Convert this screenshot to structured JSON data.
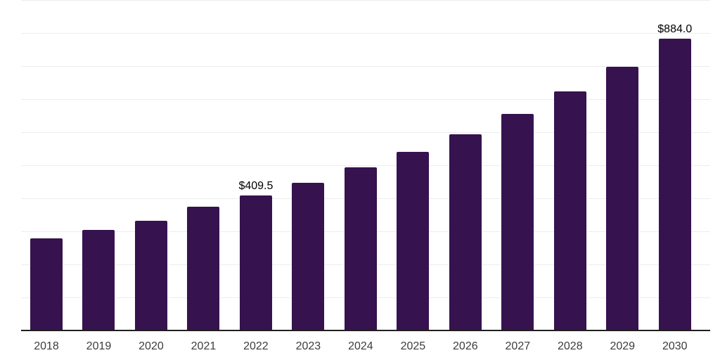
{
  "chart_data": {
    "type": "bar",
    "title": "",
    "xlabel": "",
    "ylabel": "",
    "categories": [
      "2018",
      "2019",
      "2020",
      "2021",
      "2022",
      "2023",
      "2024",
      "2025",
      "2026",
      "2027",
      "2028",
      "2029",
      "2030"
    ],
    "values": [
      279,
      305,
      331,
      375,
      409.5,
      446,
      493,
      540,
      593,
      655,
      723,
      798,
      884.0
    ],
    "annotations": [
      {
        "category": "2022",
        "text": "$409.5"
      },
      {
        "category": "2030",
        "text": "$884.0"
      }
    ],
    "ylim": [
      0,
      1000
    ],
    "grid_step": 100,
    "grid": "horizontal-only",
    "legend_position": "none",
    "bar_color": "#36124E",
    "axis_color": "#1f1f1f",
    "grid_color": "#ededed",
    "tick_label_color": "#3c3c3c",
    "annotation_color": "#000000",
    "background": "#ffffff"
  }
}
